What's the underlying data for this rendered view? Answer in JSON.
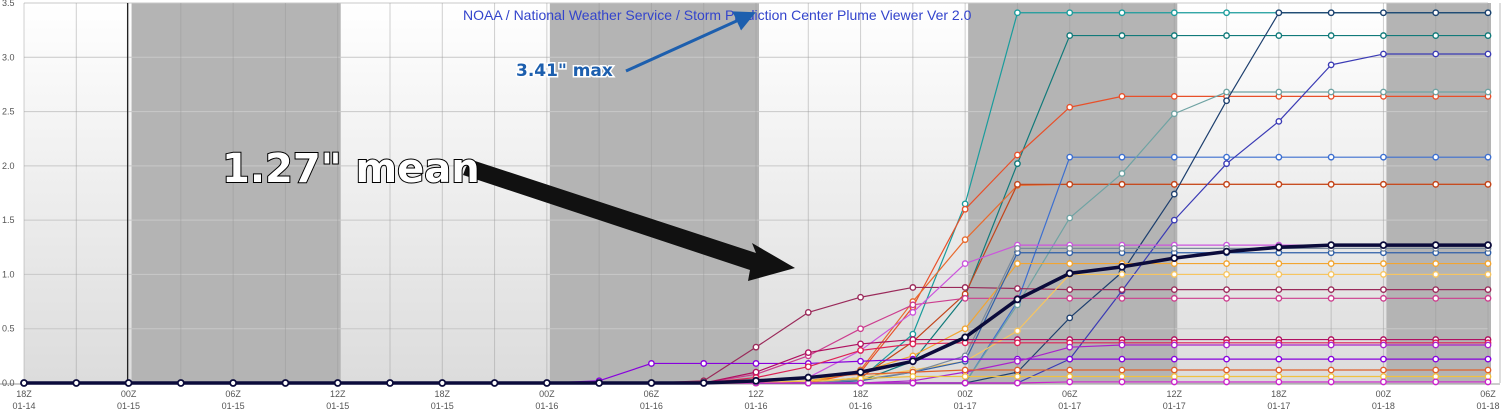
{
  "page": {
    "header_text": "NOAA / National Weather Service / Storm Prediction Center Plume Viewer Ver 2.0",
    "max_callout": "3.41\" max",
    "mean_callout": "1.27\" mean"
  },
  "colors": {
    "night_band": "#b4b4b4",
    "grid": "#c8c8c8",
    "header_text": "#3344cc",
    "max_callout": "#1d5fae",
    "mean_line": "#0b0b3b",
    "arrow": "#111111"
  },
  "chart_data": {
    "type": "line",
    "title": "",
    "xlabel": "",
    "ylabel": "",
    "ylim": [
      0,
      3.5
    ],
    "y_ticks": [
      "0.0",
      "0.5",
      "1.0",
      "1.5",
      "2.0",
      "2.5",
      "3.0",
      "3.5"
    ],
    "x_ticks": [
      [
        "18Z",
        "01-14"
      ],
      [
        "00Z",
        "01-15"
      ],
      [
        "06Z",
        "01-15"
      ],
      [
        "12Z",
        "01-15"
      ],
      [
        "18Z",
        "01-15"
      ],
      [
        "00Z",
        "01-16"
      ],
      [
        "06Z",
        "01-16"
      ],
      [
        "12Z",
        "01-16"
      ],
      [
        "18Z",
        "01-16"
      ],
      [
        "00Z",
        "01-17"
      ],
      [
        "06Z",
        "01-17"
      ],
      [
        "12Z",
        "01-17"
      ],
      [
        "18Z",
        "01-17"
      ],
      [
        "00Z",
        "01-18"
      ],
      [
        "06Z",
        "01-18"
      ]
    ],
    "x_hours_after_18Z_01-14": [
      0,
      3,
      6,
      9,
      12,
      15,
      18,
      21,
      24,
      27,
      30,
      33,
      36,
      39,
      42,
      45,
      48,
      51,
      54,
      57,
      60,
      63,
      66,
      69,
      72,
      75,
      78,
      81,
      84
    ],
    "night_bands_hours": [
      [
        6,
        18
      ],
      [
        30,
        42
      ],
      [
        54,
        66
      ],
      [
        78,
        84
      ]
    ],
    "grid": true,
    "legend": "none",
    "series": [
      {
        "color": "#1a9c9c",
        "values": [
          0,
          0,
          0,
          0,
          0,
          0,
          0,
          0,
          0,
          0,
          0,
          0,
          0,
          0,
          0,
          0,
          0.04,
          0.45,
          1.65,
          3.41,
          3.41,
          3.41,
          3.41,
          3.41,
          3.41,
          3.41,
          3.41,
          3.41,
          3.41
        ]
      },
      {
        "color": "#117a7a",
        "values": [
          0,
          0,
          0,
          0,
          0,
          0,
          0,
          0,
          0,
          0,
          0,
          0,
          0,
          0,
          0,
          0,
          0.02,
          0.2,
          0.8,
          2.02,
          3.2,
          3.2,
          3.2,
          3.2,
          3.2,
          3.2,
          3.2,
          3.2,
          3.2
        ]
      },
      {
        "color": "#e8502a",
        "values": [
          0,
          0,
          0,
          0,
          0,
          0,
          0,
          0,
          0,
          0,
          0,
          0,
          0,
          0,
          0,
          0,
          0.1,
          0.7,
          1.6,
          2.1,
          2.54,
          2.64,
          2.64,
          2.64,
          2.64,
          2.64,
          2.64,
          2.64,
          2.64
        ]
      },
      {
        "color": "#e86a2e",
        "values": [
          0,
          0,
          0,
          0,
          0,
          0,
          0,
          0,
          0,
          0,
          0,
          0,
          0,
          0,
          0,
          0,
          0.12,
          0.75,
          1.32,
          1.82,
          1.83,
          1.83,
          1.83,
          1.83,
          1.83,
          1.83,
          1.83,
          1.83,
          1.83
        ]
      },
      {
        "color": "#c2451b",
        "values": [
          0,
          0,
          0,
          0,
          0,
          0,
          0,
          0,
          0,
          0,
          0,
          0,
          0,
          0,
          0,
          0,
          0.05,
          0.38,
          0.82,
          1.83,
          1.83,
          1.83,
          1.83,
          1.83,
          1.83,
          1.83,
          1.83,
          1.83,
          1.83
        ]
      },
      {
        "color": "#3c6fd0",
        "values": [
          0,
          0,
          0,
          0,
          0,
          0,
          0,
          0,
          0,
          0,
          0,
          0,
          0,
          0,
          0,
          0,
          0,
          0,
          0,
          0.75,
          2.08,
          2.08,
          2.08,
          2.08,
          2.08,
          2.08,
          2.08,
          2.08,
          2.08
        ]
      },
      {
        "color": "#6fa3a3",
        "values": [
          0,
          0,
          0,
          0,
          0,
          0,
          0,
          0,
          0,
          0,
          0,
          0,
          0,
          0,
          0,
          0,
          0,
          0,
          0,
          0.72,
          1.52,
          1.93,
          2.48,
          2.68,
          2.68,
          2.68,
          2.68,
          2.68,
          2.68
        ]
      },
      {
        "color": "#3b3bb5",
        "values": [
          0,
          0,
          0,
          0,
          0,
          0,
          0,
          0,
          0,
          0,
          0,
          0,
          0,
          0,
          0,
          0,
          0,
          0,
          0,
          0,
          0.22,
          0.85,
          1.5,
          2.02,
          2.41,
          2.93,
          3.03,
          3.03,
          3.03
        ]
      },
      {
        "color": "#1d3f6e",
        "values": [
          0,
          0,
          0,
          0,
          0,
          0,
          0,
          0,
          0,
          0,
          0,
          0,
          0,
          0,
          0,
          0,
          0,
          0,
          0,
          0.1,
          0.6,
          1.02,
          1.74,
          2.6,
          3.41,
          3.41,
          3.41,
          3.41,
          3.41
        ]
      },
      {
        "color": "#9a2a5a",
        "values": [
          0,
          0,
          0,
          0,
          0,
          0,
          0,
          0,
          0,
          0,
          0,
          0,
          0,
          0.02,
          0.33,
          0.65,
          0.79,
          0.88,
          0.88,
          0.87,
          0.86,
          0.86,
          0.86,
          0.86,
          0.86,
          0.86,
          0.86,
          0.86,
          0.86
        ]
      },
      {
        "color": "#cc3d8e",
        "values": [
          0,
          0,
          0,
          0,
          0,
          0,
          0,
          0,
          0,
          0,
          0,
          0,
          0,
          0,
          0.08,
          0.25,
          0.5,
          0.72,
          0.78,
          0.78,
          0.78,
          0.78,
          0.78,
          0.78,
          0.78,
          0.78,
          0.78,
          0.78,
          0.78
        ]
      },
      {
        "color": "#cc55dd",
        "values": [
          0,
          0,
          0,
          0,
          0,
          0,
          0,
          0,
          0,
          0,
          0,
          0,
          0,
          0,
          0,
          0.05,
          0.3,
          0.65,
          1.1,
          1.27,
          1.27,
          1.27,
          1.27,
          1.27,
          1.27,
          1.27,
          1.27,
          1.27,
          1.27
        ]
      },
      {
        "color": "#f2a531",
        "values": [
          0,
          0,
          0,
          0,
          0,
          0,
          0,
          0,
          0,
          0,
          0,
          0,
          0,
          0,
          0,
          0.02,
          0.1,
          0.25,
          0.5,
          1.1,
          1.1,
          1.1,
          1.1,
          1.1,
          1.1,
          1.1,
          1.1,
          1.1,
          1.1
        ]
      },
      {
        "color": "#f7c560",
        "values": [
          0,
          0,
          0,
          0,
          0,
          0,
          0,
          0,
          0,
          0,
          0,
          0,
          0,
          0,
          0,
          0,
          0.05,
          0.12,
          0.2,
          0.48,
          1.0,
          1.0,
          1.0,
          1.0,
          1.0,
          1.0,
          1.0,
          1.0,
          1.0
        ]
      },
      {
        "color": "#3060a8",
        "values": [
          0,
          0,
          0,
          0,
          0,
          0,
          0,
          0,
          0,
          0,
          0,
          0,
          0,
          0,
          0,
          0,
          0.02,
          0.1,
          0.2,
          1.2,
          1.2,
          1.2,
          1.2,
          1.2,
          1.2,
          1.2,
          1.2,
          1.2,
          1.2
        ]
      },
      {
        "color": "#7a8a9c",
        "values": [
          0,
          0,
          0,
          0,
          0,
          0,
          0,
          0,
          0,
          0,
          0,
          0,
          0,
          0,
          0,
          0,
          0.03,
          0.1,
          0.25,
          1.24,
          1.24,
          1.24,
          1.24,
          1.24,
          1.24,
          1.24,
          1.24,
          1.24,
          1.24
        ]
      },
      {
        "color": "#8800dd",
        "values": [
          0,
          0,
          0,
          0,
          0,
          0,
          0,
          0,
          0,
          0,
          0,
          0.02,
          0.18,
          0.18,
          0.18,
          0.18,
          0.2,
          0.22,
          0.22,
          0.22,
          0.22,
          0.22,
          0.22,
          0.22,
          0.22,
          0.22,
          0.22,
          0.22,
          0.22
        ]
      },
      {
        "color": "#b01060",
        "values": [
          0,
          0,
          0,
          0,
          0,
          0,
          0,
          0,
          0,
          0,
          0,
          0,
          0,
          0,
          0.1,
          0.28,
          0.36,
          0.4,
          0.4,
          0.4,
          0.4,
          0.4,
          0.4,
          0.4,
          0.4,
          0.4,
          0.4,
          0.4,
          0.4
        ]
      },
      {
        "color": "#dd2255",
        "values": [
          0,
          0,
          0,
          0,
          0,
          0,
          0,
          0,
          0,
          0,
          0,
          0,
          0,
          0,
          0.05,
          0.15,
          0.3,
          0.36,
          0.37,
          0.37,
          0.37,
          0.37,
          0.37,
          0.37,
          0.37,
          0.37,
          0.37,
          0.37,
          0.37
        ]
      },
      {
        "color": "#aa22cc",
        "values": [
          0,
          0,
          0,
          0,
          0,
          0,
          0,
          0,
          0,
          0,
          0,
          0,
          0,
          0,
          0,
          0,
          0,
          0.02,
          0.1,
          0.2,
          0.33,
          0.35,
          0.35,
          0.35,
          0.35,
          0.35,
          0.35,
          0.35,
          0.35
        ]
      },
      {
        "color": "#e0602a",
        "values": [
          0,
          0,
          0,
          0,
          0,
          0,
          0,
          0,
          0,
          0,
          0,
          0,
          0,
          0,
          0.02,
          0.05,
          0.08,
          0.1,
          0.12,
          0.12,
          0.12,
          0.12,
          0.12,
          0.12,
          0.12,
          0.12,
          0.12,
          0.12,
          0.12
        ]
      },
      {
        "color": "#f0c040",
        "values": [
          0,
          0,
          0,
          0,
          0,
          0,
          0,
          0,
          0,
          0,
          0,
          0,
          0,
          0,
          0,
          0.02,
          0.04,
          0.06,
          0.06,
          0.06,
          0.06,
          0.06,
          0.06,
          0.06,
          0.06,
          0.06,
          0.06,
          0.06,
          0.06
        ]
      },
      {
        "color": "#cc22cc",
        "values": [
          0,
          0,
          0,
          0,
          0,
          0,
          0,
          0,
          0,
          0,
          0,
          0,
          0,
          0,
          0,
          0,
          0,
          0,
          0,
          0,
          0.01,
          0.01,
          0.01,
          0.01,
          0.01,
          0.01,
          0.01,
          0.01,
          0.01
        ]
      },
      {
        "color": "#0b0b3b",
        "mean": true,
        "values": [
          0,
          0,
          0,
          0,
          0,
          0,
          0,
          0,
          0,
          0,
          0,
          0,
          0,
          0,
          0.02,
          0.05,
          0.1,
          0.2,
          0.42,
          0.77,
          1.01,
          1.07,
          1.15,
          1.21,
          1.25,
          1.27,
          1.27,
          1.27,
          1.27
        ]
      }
    ]
  }
}
